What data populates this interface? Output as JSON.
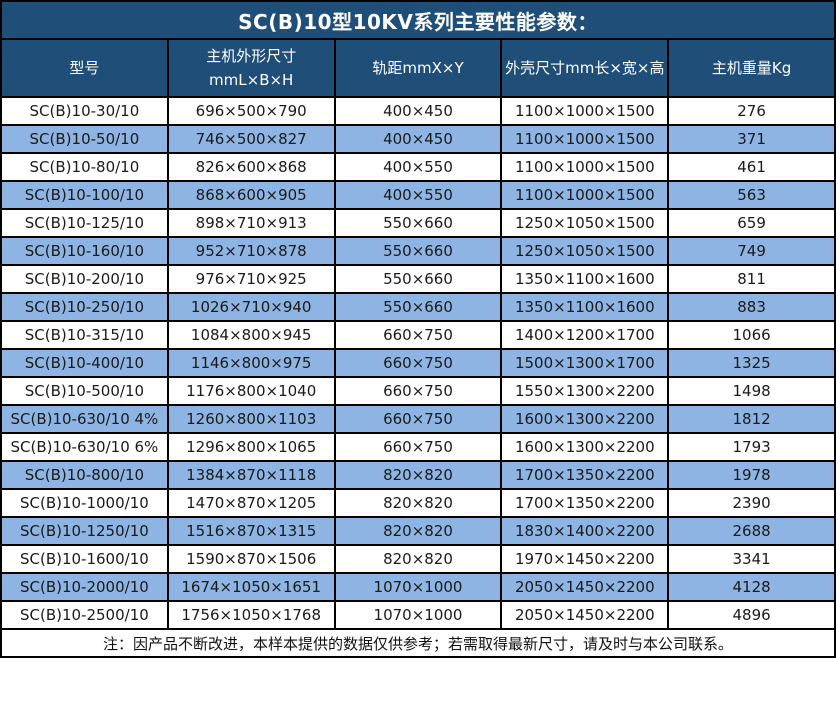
{
  "title": "SC(B)10型10KV系列主要性能参数：",
  "table": {
    "headers": [
      {
        "line1": "型号"
      },
      {
        "line1": "主机外形尺寸",
        "line2": "mmL×B×H"
      },
      {
        "line1": "轨距mmX×Y"
      },
      {
        "line1": "外壳尺寸mm长×宽×高"
      },
      {
        "line1": "主机重量Kg"
      }
    ],
    "rows": [
      {
        "model": "SC(B)10-30/10",
        "dimensions": "696×500×790",
        "gauge": "400×450",
        "shell": "1100×1000×1500",
        "weight": "276"
      },
      {
        "model": "SC(B)10-50/10",
        "dimensions": "746×500×827",
        "gauge": "400×450",
        "shell": "1100×1000×1500",
        "weight": "371"
      },
      {
        "model": "SC(B)10-80/10",
        "dimensions": "826×600×868",
        "gauge": "400×550",
        "shell": "1100×1000×1500",
        "weight": "461"
      },
      {
        "model": "SC(B)10-100/10",
        "dimensions": "868×600×905",
        "gauge": "400×550",
        "shell": "1100×1000×1500",
        "weight": "563"
      },
      {
        "model": "SC(B)10-125/10",
        "dimensions": "898×710×913",
        "gauge": "550×660",
        "shell": "1250×1050×1500",
        "weight": "659"
      },
      {
        "model": "SC(B)10-160/10",
        "dimensions": "952×710×878",
        "gauge": "550×660",
        "shell": "1250×1050×1500",
        "weight": "749"
      },
      {
        "model": "SC(B)10-200/10",
        "dimensions": "976×710×925",
        "gauge": "550×660",
        "shell": "1350×1100×1600",
        "weight": "811"
      },
      {
        "model": "SC(B)10-250/10",
        "dimensions": "1026×710×940",
        "gauge": "550×660",
        "shell": "1350×1100×1600",
        "weight": "883"
      },
      {
        "model": "SC(B)10-315/10",
        "dimensions": "1084×800×945",
        "gauge": "660×750",
        "shell": "1400×1200×1700",
        "weight": "1066"
      },
      {
        "model": "SC(B)10-400/10",
        "dimensions": "1146×800×975",
        "gauge": "660×750",
        "shell": "1500×1300×1700",
        "weight": "1325"
      },
      {
        "model": "SC(B)10-500/10",
        "dimensions": "1176×800×1040",
        "gauge": "660×750",
        "shell": "1550×1300×2200",
        "weight": "1498"
      },
      {
        "model": "SC(B)10-630/10 4%",
        "dimensions": "1260×800×1103",
        "gauge": "660×750",
        "shell": "1600×1300×2200",
        "weight": "1812"
      },
      {
        "model": "SC(B)10-630/10 6%",
        "dimensions": "1296×800×1065",
        "gauge": "660×750",
        "shell": "1600×1300×2200",
        "weight": "1793"
      },
      {
        "model": "SC(B)10-800/10",
        "dimensions": "1384×870×1118",
        "gauge": "820×820",
        "shell": "1700×1350×2200",
        "weight": "1978"
      },
      {
        "model": "SC(B)10-1000/10",
        "dimensions": "1470×870×1205",
        "gauge": "820×820",
        "shell": "1700×1350×2200",
        "weight": "2390"
      },
      {
        "model": "SC(B)10-1250/10",
        "dimensions": "1516×870×1315",
        "gauge": "820×820",
        "shell": "1830×1400×2200",
        "weight": "2688"
      },
      {
        "model": "SC(B)10-1600/10",
        "dimensions": "1590×870×1506",
        "gauge": "820×820",
        "shell": "1970×1450×2200",
        "weight": "3341"
      },
      {
        "model": "SC(B)10-2000/10",
        "dimensions": "1674×1050×1651",
        "gauge": "1070×1000",
        "shell": "2050×1450×2200",
        "weight": "4128"
      },
      {
        "model": "SC(B)10-2500/10",
        "dimensions": "1756×1050×1768",
        "gauge": "1070×1000",
        "shell": "2050×1450×2200",
        "weight": "4896"
      }
    ]
  },
  "note": "注：因产品不断改进，本样本提供的数据仅供参考；若需取得最新尺寸，请及时与本公司联系。",
  "colors": {
    "header_bg": "#1F4E79",
    "row_alt_bg": "#8DB4E2",
    "row_bg": "#FFFFFF",
    "border": "#000000",
    "header_text": "#FFFFFF",
    "cell_text": "#1A1A1A"
  }
}
